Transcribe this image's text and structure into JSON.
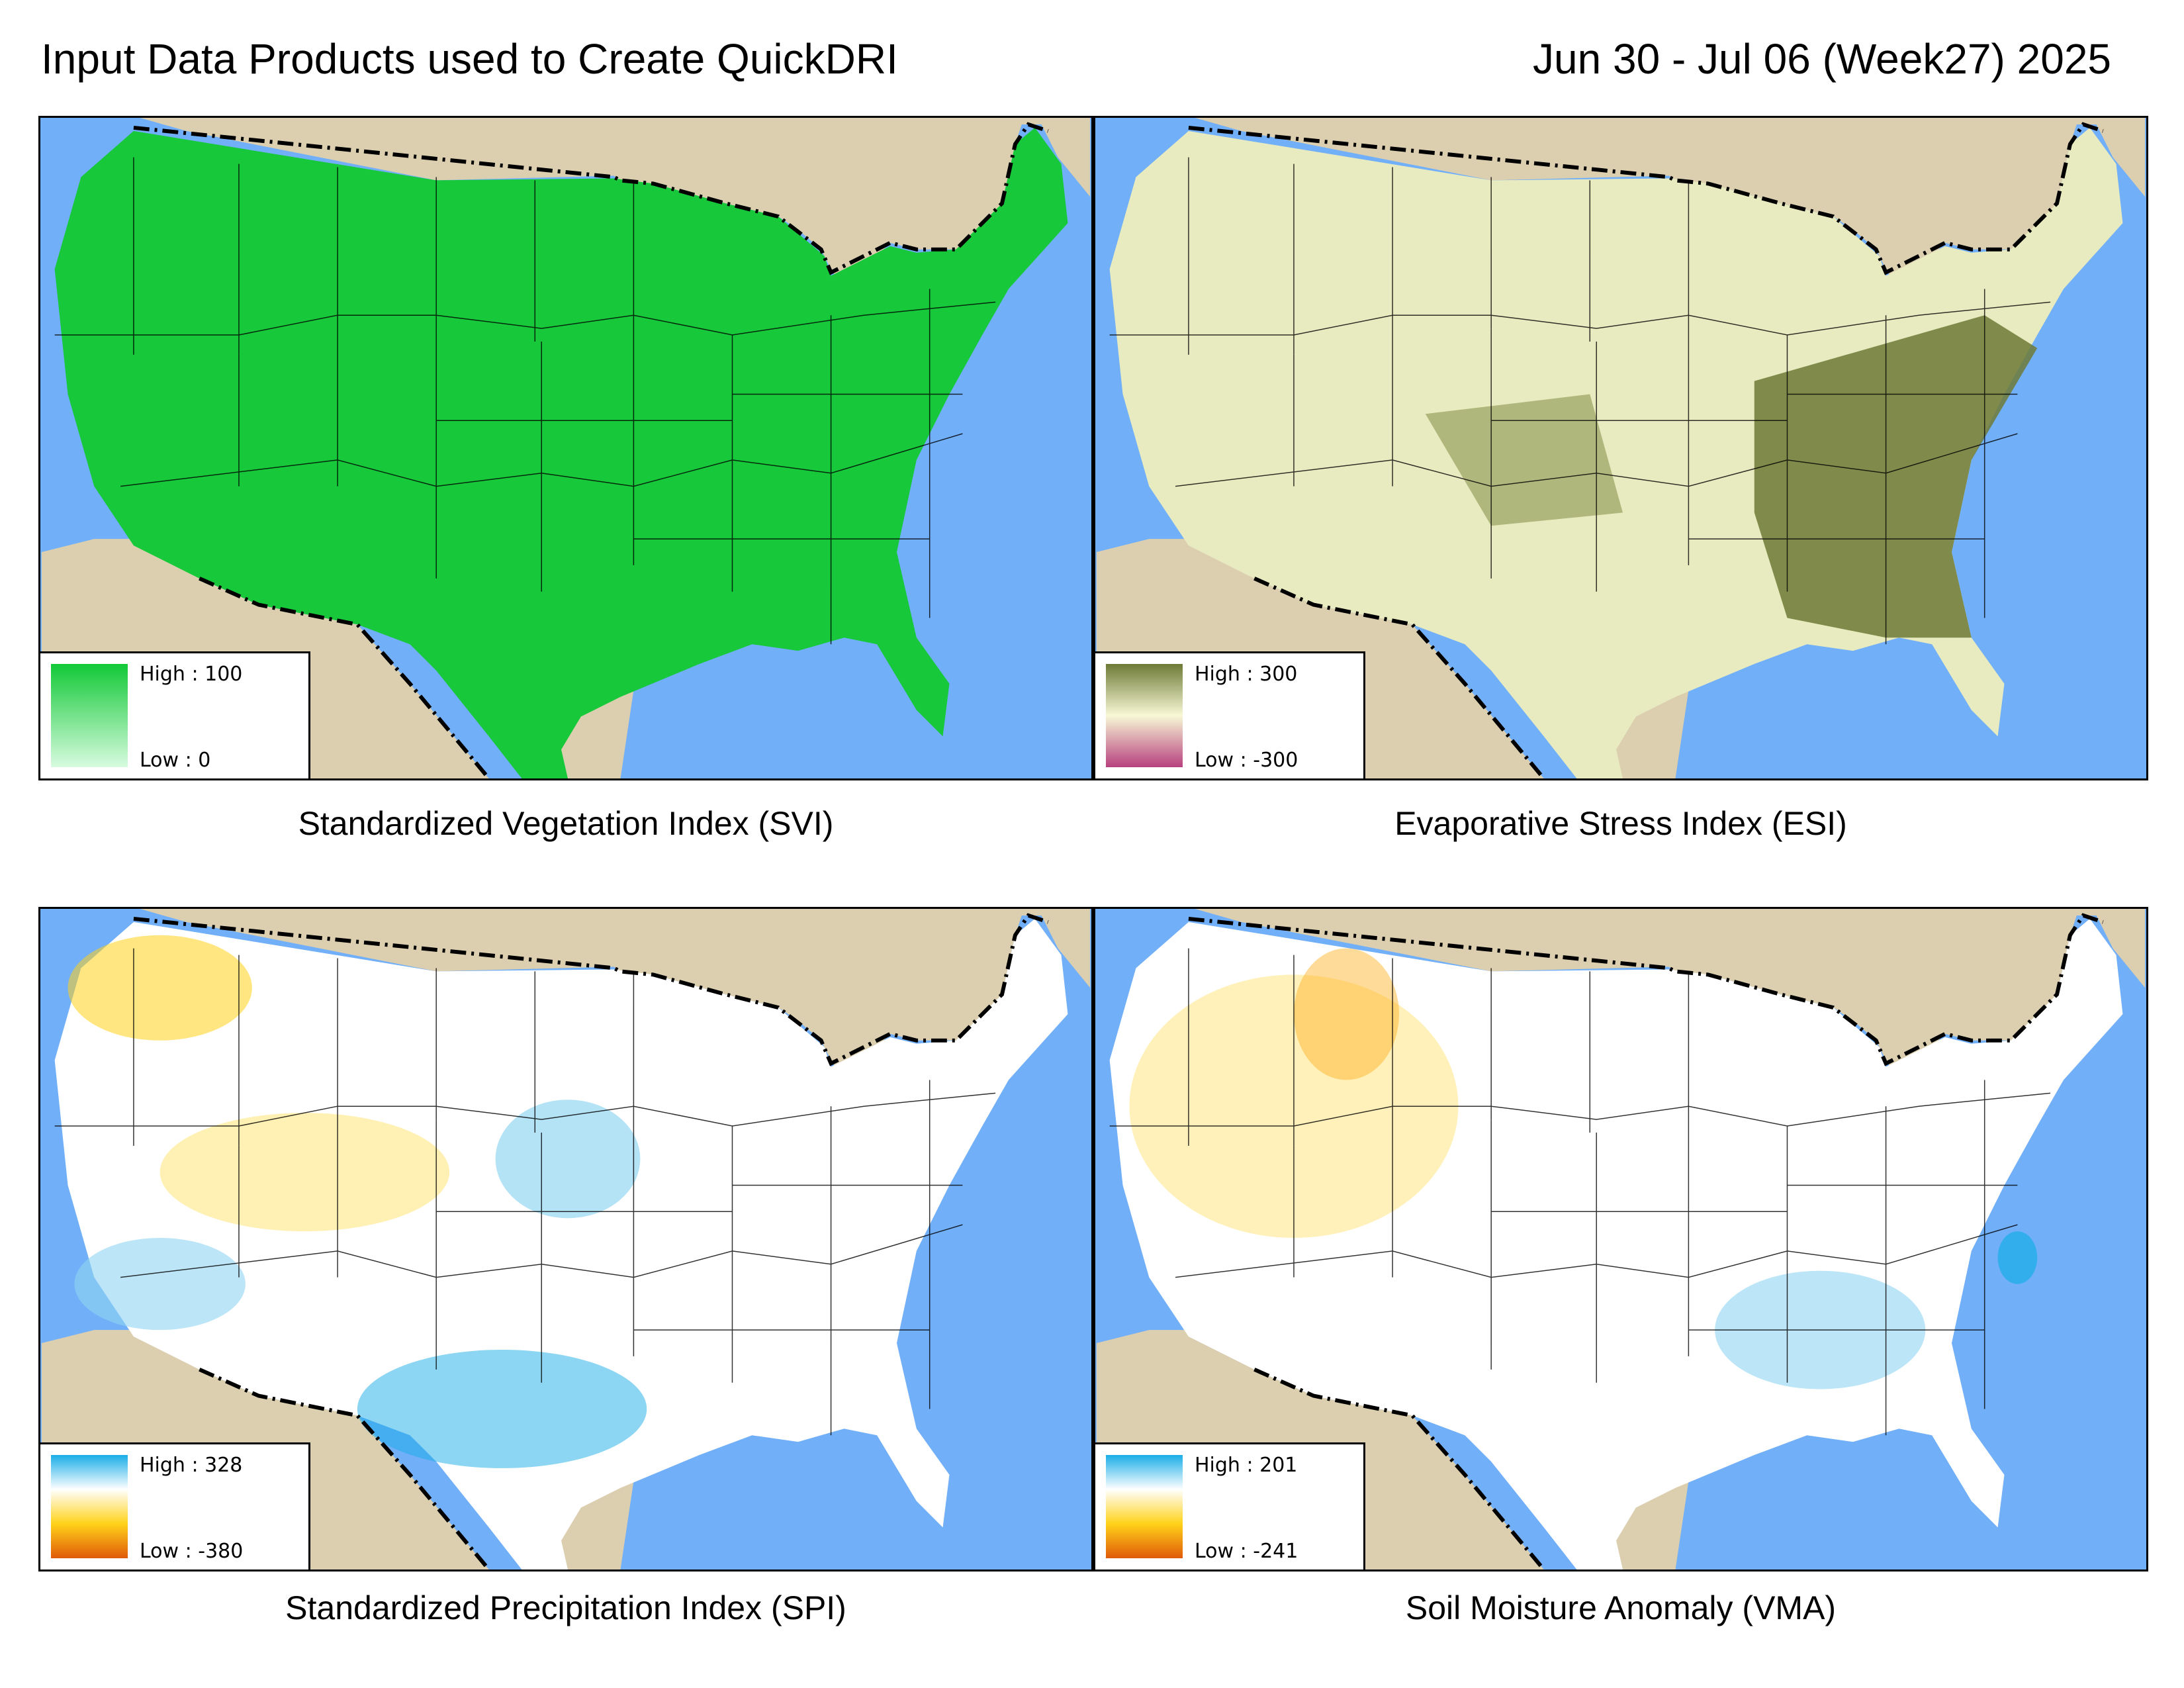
{
  "header": {
    "title": "Input Data Products used to Create QuickDRI",
    "date_range": "Jun 30 - Jul 06 (Week27) 2025"
  },
  "colors": {
    "ocean": "#71aff8",
    "land_outside": "#dccfb0",
    "border_line": "#000000"
  },
  "panels": [
    {
      "caption": "Standardized Vegetation Index (SVI)",
      "legend_high": "High : 100",
      "legend_low": "Low : 0",
      "ramp": [
        "#12c936",
        "#d8fbe0"
      ],
      "fill": "#16c83a"
    },
    {
      "caption": "Evaporative Stress Index (ESI)",
      "legend_high": "High : 300",
      "legend_low": "Low : -300",
      "ramp": [
        "#6d7a36",
        "#f8f8d6",
        "#b7407e"
      ],
      "fill": "#e8ebbf"
    },
    {
      "caption": "Standardized Precipitation Index (SPI)",
      "legend_high": "High : 328",
      "legend_low": "Low : -380",
      "ramp": [
        "#1aaee8",
        "#ffffff",
        "#ffd21a",
        "#e05a08"
      ],
      "fill": "#ffffff"
    },
    {
      "caption": "Soil Moisture Anomaly (VMA)",
      "legend_high": "High : 201",
      "legend_low": "Low : -241",
      "ramp": [
        "#1aaee8",
        "#ffffff",
        "#ffd21a",
        "#e05a08"
      ],
      "fill": "#ffffff"
    }
  ]
}
